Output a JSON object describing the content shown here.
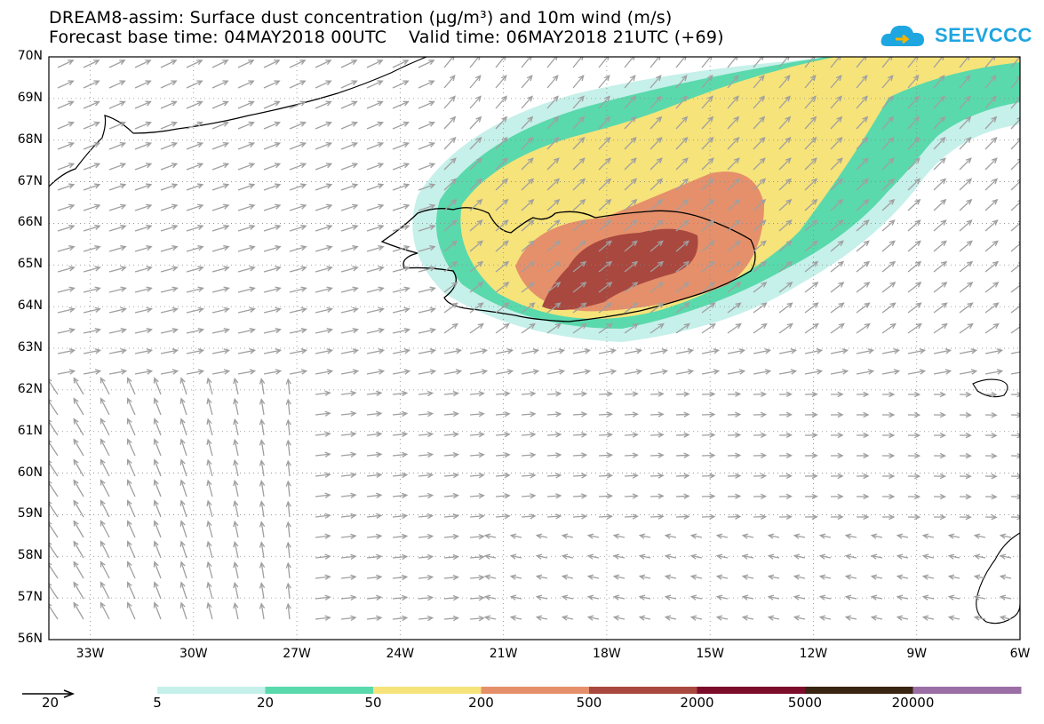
{
  "header": {
    "title_line1": "DREAM8-assim: Surface dust concentration (µg/m³) and 10m wind (m/s)",
    "title_line2": "Forecast base time: 04MAY2018 00UTC    Valid time: 06MAY2018 21UTC (+69)"
  },
  "logo": {
    "text": "SEEVCCC",
    "color": "#1ea6e0"
  },
  "map": {
    "lat_labels": [
      "70N",
      "69N",
      "68N",
      "67N",
      "66N",
      "65N",
      "64N",
      "63N",
      "62N",
      "61N",
      "60N",
      "59N",
      "58N",
      "57N",
      "56N"
    ],
    "lon_labels": [
      "33W",
      "30W",
      "27W",
      "24W",
      "21W",
      "18W",
      "15W",
      "12W",
      "9W",
      "6W"
    ],
    "lat_range": [
      56,
      70
    ],
    "lon_range": [
      -34.2,
      -6
    ],
    "gridlines": true,
    "arrow_color": "#a0a0a0"
  },
  "legend": {
    "wind_reference": "20",
    "levels": [
      "5",
      "20",
      "50",
      "200",
      "500",
      "2000",
      "5000",
      "20000"
    ],
    "colors": [
      "#c6f0ea",
      "#5ad9ac",
      "#f6e37a",
      "#e5906b",
      "#a9483f",
      "#7b0d2b",
      "#3a2412",
      "#9b6fa6"
    ]
  }
}
